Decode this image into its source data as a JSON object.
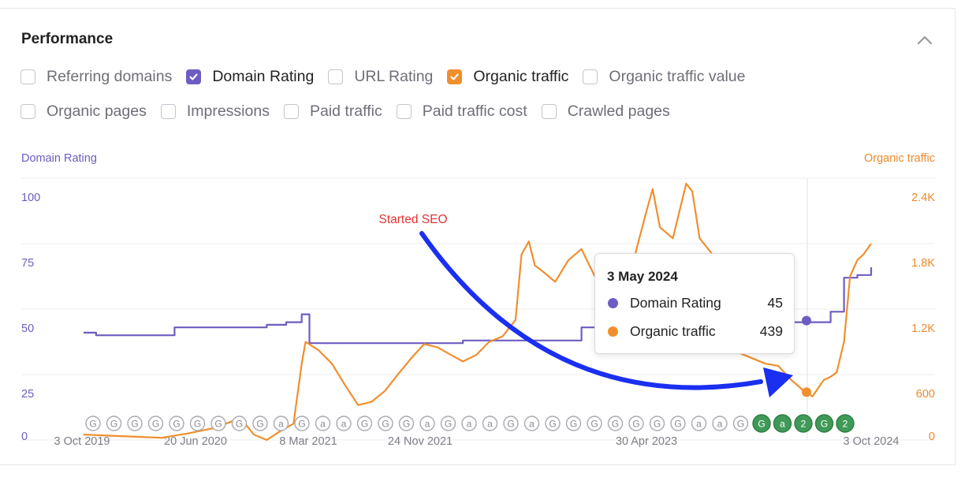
{
  "panel": {
    "title": "Performance",
    "collapse_icon": "chevron-up-icon"
  },
  "metrics_row1": [
    {
      "label": "Referring domains",
      "checked": false
    },
    {
      "label": "Domain Rating",
      "checked": true,
      "color": "#6f5cc2"
    },
    {
      "label": "URL Rating",
      "checked": false
    },
    {
      "label": "Organic traffic",
      "checked": true,
      "color": "#f08f2e"
    },
    {
      "label": "Organic traffic value",
      "checked": false
    }
  ],
  "metrics_row2": [
    {
      "label": "Organic pages",
      "checked": false
    },
    {
      "label": "Impressions",
      "checked": false
    },
    {
      "label": "Paid traffic",
      "checked": false
    },
    {
      "label": "Paid traffic cost",
      "checked": false
    },
    {
      "label": "Crawled pages",
      "checked": false
    }
  ],
  "chart_data": {
    "type": "line",
    "left_axis": {
      "title": "Domain Rating",
      "ticks": [
        "0",
        "25",
        "50",
        "75",
        "100"
      ],
      "range": [
        0,
        100
      ],
      "color": "#6f5cc2"
    },
    "right_axis": {
      "title": "Organic traffic",
      "ticks": [
        "0",
        "600",
        "1.2K",
        "1.8K",
        "2.4K"
      ],
      "range": [
        0,
        2400
      ],
      "color": "#ec8a2a"
    },
    "x_ticks": [
      "3 Oct 2019",
      "20 Jun 2020",
      "8 Mar 2021",
      "24 Nov 2021",
      "30 Apr 2023",
      "3 Oct 2024"
    ],
    "grid": true,
    "annotation": {
      "text": "Started SEO",
      "color": "#e03434",
      "arrow_color": "#1a2ff0"
    },
    "series": [
      {
        "name": "Domain Rating",
        "axis": "left",
        "color": "#6f5cc2",
        "points": [
          [
            "2019-10-03",
            41
          ],
          [
            "2019-11-01",
            40
          ],
          [
            "2020-01-01",
            40
          ],
          [
            "2020-04-01",
            40
          ],
          [
            "2020-05-01",
            43
          ],
          [
            "2020-07-01",
            43
          ],
          [
            "2020-10-01",
            43
          ],
          [
            "2020-12-01",
            44
          ],
          [
            "2021-01-15",
            45
          ],
          [
            "2021-02-20",
            48
          ],
          [
            "2021-03-10",
            37
          ],
          [
            "2021-06-01",
            37
          ],
          [
            "2021-09-01",
            37
          ],
          [
            "2021-12-01",
            37
          ],
          [
            "2022-03-01",
            38
          ],
          [
            "2022-06-01",
            38
          ],
          [
            "2022-09-01",
            38
          ],
          [
            "2022-11-01",
            38
          ],
          [
            "2022-12-01",
            43
          ],
          [
            "2023-03-01",
            43
          ],
          [
            "2023-06-01",
            44
          ],
          [
            "2023-09-01",
            44
          ],
          [
            "2023-12-01",
            44
          ],
          [
            "2024-03-01",
            45
          ],
          [
            "2024-05-03",
            45
          ],
          [
            "2024-06-01",
            45
          ],
          [
            "2024-07-01",
            49
          ],
          [
            "2024-08-01",
            62
          ],
          [
            "2024-09-01",
            63
          ],
          [
            "2024-10-03",
            66
          ]
        ]
      },
      {
        "name": "Organic traffic",
        "axis": "right",
        "color": "#f08f2e",
        "points": [
          [
            "2019-10-03",
            50
          ],
          [
            "2019-12-01",
            40
          ],
          [
            "2020-02-01",
            30
          ],
          [
            "2020-04-01",
            20
          ],
          [
            "2020-06-01",
            60
          ],
          [
            "2020-08-01",
            110
          ],
          [
            "2020-10-01",
            200
          ],
          [
            "2020-11-01",
            50
          ],
          [
            "2020-12-01",
            0
          ],
          [
            "2021-01-01",
            80
          ],
          [
            "2021-02-01",
            150
          ],
          [
            "2021-02-20",
            700
          ],
          [
            "2021-03-01",
            900
          ],
          [
            "2021-04-01",
            820
          ],
          [
            "2021-05-01",
            700
          ],
          [
            "2021-06-01",
            500
          ],
          [
            "2021-07-01",
            320
          ],
          [
            "2021-08-01",
            350
          ],
          [
            "2021-09-01",
            450
          ],
          [
            "2021-10-01",
            600
          ],
          [
            "2021-11-01",
            750
          ],
          [
            "2021-12-01",
            880
          ],
          [
            "2022-01-01",
            850
          ],
          [
            "2022-02-01",
            780
          ],
          [
            "2022-03-01",
            720
          ],
          [
            "2022-04-01",
            780
          ],
          [
            "2022-05-01",
            900
          ],
          [
            "2022-06-01",
            950
          ],
          [
            "2022-07-01",
            1100
          ],
          [
            "2022-07-15",
            1700
          ],
          [
            "2022-08-01",
            1820
          ],
          [
            "2022-08-15",
            1600
          ],
          [
            "2022-09-01",
            1550
          ],
          [
            "2022-10-01",
            1450
          ],
          [
            "2022-11-01",
            1650
          ],
          [
            "2022-12-01",
            1750
          ],
          [
            "2023-01-01",
            1500
          ],
          [
            "2023-02-01",
            1450
          ],
          [
            "2023-03-01",
            1550
          ],
          [
            "2023-04-01",
            1650
          ],
          [
            "2023-05-01",
            2100
          ],
          [
            "2023-05-15",
            2300
          ],
          [
            "2023-06-01",
            1950
          ],
          [
            "2023-07-01",
            1850
          ],
          [
            "2023-08-01",
            2350
          ],
          [
            "2023-08-15",
            2280
          ],
          [
            "2023-09-01",
            1850
          ],
          [
            "2023-10-01",
            1700
          ],
          [
            "2023-11-01",
            1650
          ],
          [
            "2023-12-01",
            800
          ],
          [
            "2024-01-01",
            750
          ],
          [
            "2024-02-01",
            700
          ],
          [
            "2024-03-01",
            680
          ],
          [
            "2024-04-01",
            550
          ],
          [
            "2024-05-03",
            439
          ],
          [
            "2024-05-20",
            400
          ],
          [
            "2024-06-15",
            550
          ],
          [
            "2024-07-01",
            580
          ],
          [
            "2024-07-15",
            620
          ],
          [
            "2024-08-01",
            900
          ],
          [
            "2024-08-15",
            1500
          ],
          [
            "2024-09-01",
            1650
          ],
          [
            "2024-09-15",
            1700
          ],
          [
            "2024-10-03",
            1800
          ]
        ]
      }
    ],
    "tooltip": {
      "date": "3 May 2024",
      "rows": [
        {
          "label": "Domain Rating",
          "value": "45",
          "color": "#6f5cc2"
        },
        {
          "label": "Organic traffic",
          "value": "439",
          "color": "#f08f2e"
        }
      ]
    },
    "event_markers": [
      "G",
      "G",
      "G",
      "G",
      "G",
      "G",
      "G",
      "G",
      "G",
      "a",
      "G",
      "a",
      "a",
      "G",
      "G",
      "G",
      "a",
      "G",
      "a",
      "a",
      "G",
      "a",
      "G",
      "G",
      "G",
      "G",
      "G",
      "G",
      "G",
      "a",
      "a",
      "G",
      "G",
      "a",
      "2",
      "G",
      "2"
    ]
  }
}
